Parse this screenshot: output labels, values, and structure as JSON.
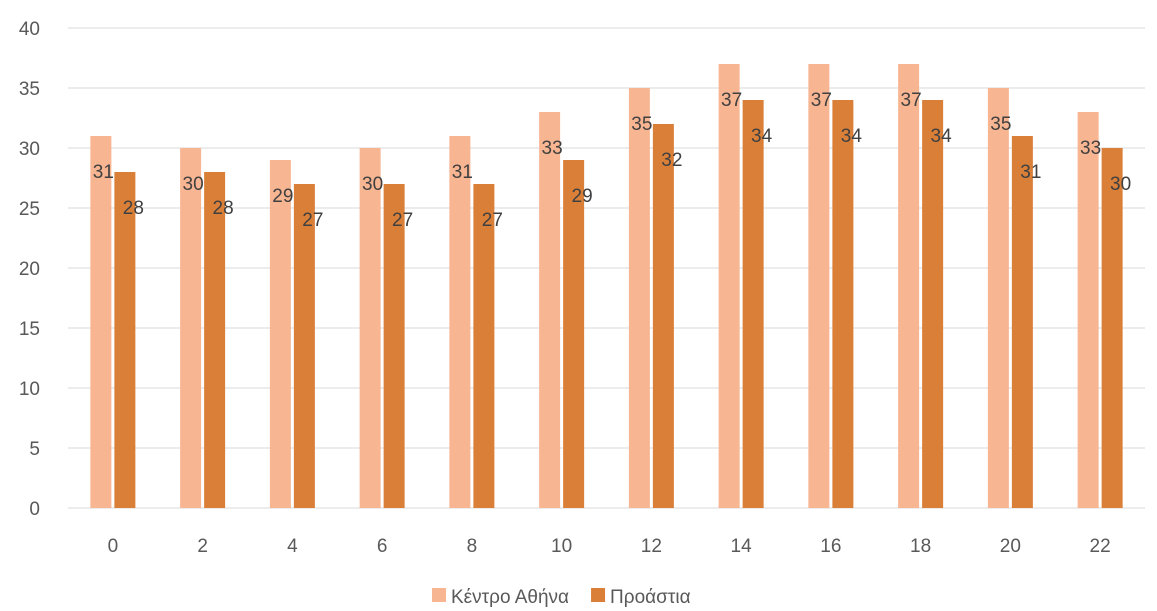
{
  "chart_data": {
    "type": "bar",
    "title": "",
    "xlabel": "",
    "ylabel": "",
    "categories": [
      "0",
      "2",
      "4",
      "6",
      "8",
      "10",
      "12",
      "14",
      "16",
      "18",
      "20",
      "22"
    ],
    "series": [
      {
        "name": "Κέντρο Αθήνα",
        "color": "#f8b592",
        "values": [
          31,
          30,
          29,
          30,
          31,
          33,
          35,
          37,
          37,
          37,
          35,
          33
        ]
      },
      {
        "name": "Προάστια",
        "color": "#da7f38",
        "values": [
          28,
          28,
          27,
          27,
          27,
          29,
          32,
          34,
          34,
          34,
          31,
          30
        ]
      }
    ],
    "ylim": [
      0,
      40
    ],
    "yticks": [
      0,
      5,
      10,
      15,
      20,
      25,
      30,
      35,
      40
    ],
    "grid": true,
    "gridline_color": "#d9d9d9",
    "legend_position": "bottom",
    "data_labels": true
  }
}
